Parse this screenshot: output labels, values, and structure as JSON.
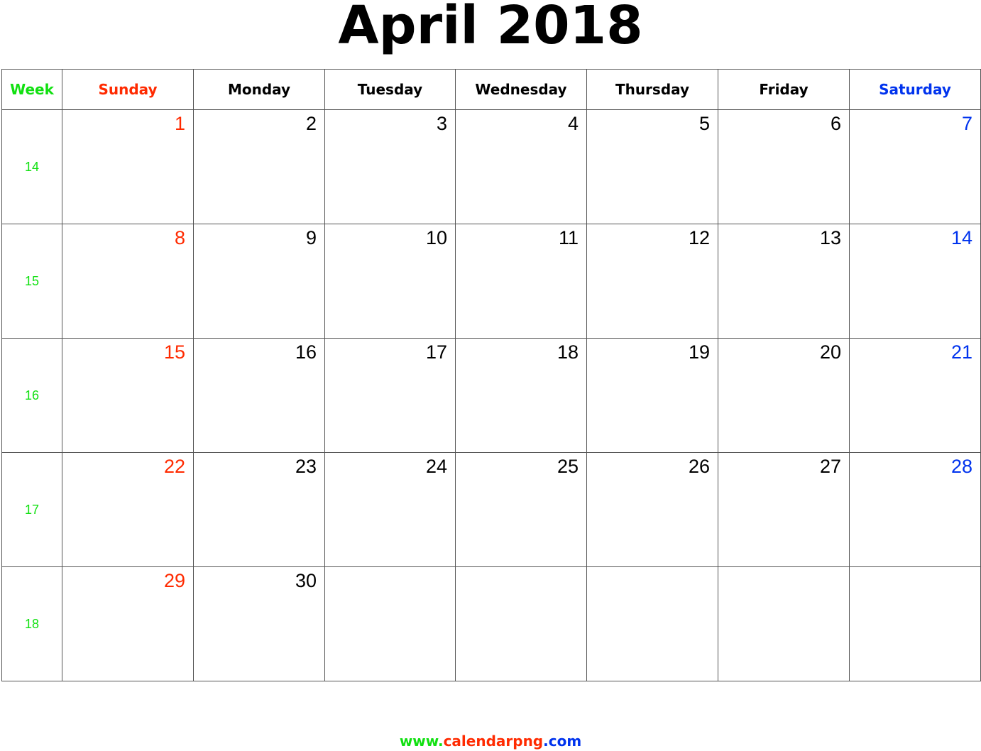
{
  "title": "April 2018",
  "header": [
    "Week",
    "Sunday",
    "Monday",
    "Tuesday",
    "Wednesday",
    "Thursday",
    "Friday",
    "Saturday"
  ],
  "weeks": [
    {
      "week": 14,
      "days": [
        1,
        2,
        3,
        4,
        5,
        6,
        7
      ]
    },
    {
      "week": 15,
      "days": [
        8,
        9,
        10,
        11,
        12,
        13,
        14
      ]
    },
    {
      "week": 16,
      "days": [
        15,
        16,
        17,
        18,
        19,
        20,
        21
      ]
    },
    {
      "week": 17,
      "days": [
        22,
        23,
        24,
        25,
        26,
        27,
        28
      ]
    },
    {
      "week": 18,
      "days": [
        29,
        30,
        null,
        null,
        null,
        null,
        null
      ]
    }
  ],
  "footer": [
    "www.",
    "calendarpng",
    ".com"
  ]
}
